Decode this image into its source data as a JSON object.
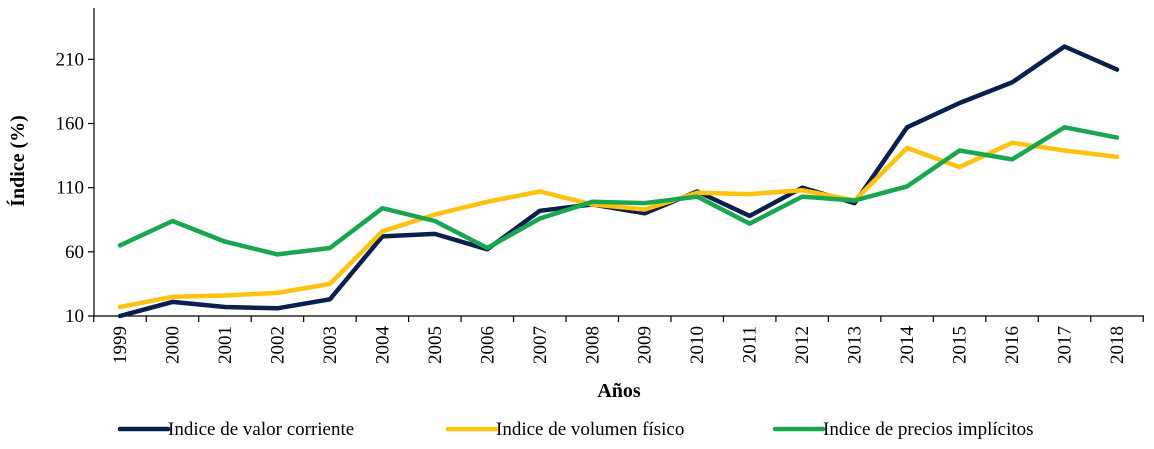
{
  "chart_data": {
    "type": "line",
    "title": "",
    "xlabel": "Años",
    "ylabel": "Índice (%)",
    "categories": [
      "1999",
      "2000",
      "2001",
      "2002",
      "2003",
      "2004",
      "2005",
      "2006",
      "2007",
      "2008",
      "2009",
      "2010",
      "2011",
      "2012",
      "2013",
      "2014",
      "2015",
      "2016",
      "2017",
      "2018"
    ],
    "yticks": [
      10,
      60,
      110,
      160,
      210
    ],
    "ylim": [
      10,
      250
    ],
    "grid": false,
    "legend_position": "bottom",
    "series": [
      {
        "name": "Indice de valor corriente",
        "color": "#0b1f4f",
        "values": [
          10,
          21,
          17,
          16,
          23,
          72,
          74,
          62,
          92,
          97,
          90,
          107,
          88,
          110,
          98,
          157,
          176,
          192,
          220,
          202
        ]
      },
      {
        "name": "Indice de volumen físico",
        "color": "#ffc20e",
        "values": [
          17,
          25,
          26,
          28,
          35,
          76,
          89,
          99,
          107,
          97,
          93,
          106,
          105,
          108,
          100,
          141,
          126,
          145,
          139,
          134
        ]
      },
      {
        "name": "Indice de precios implícitos",
        "color": "#1aa651",
        "values": [
          65,
          84,
          68,
          58,
          63,
          94,
          84,
          63,
          86,
          99,
          98,
          103,
          82,
          103,
          100,
          111,
          139,
          132,
          157,
          149
        ]
      }
    ]
  }
}
